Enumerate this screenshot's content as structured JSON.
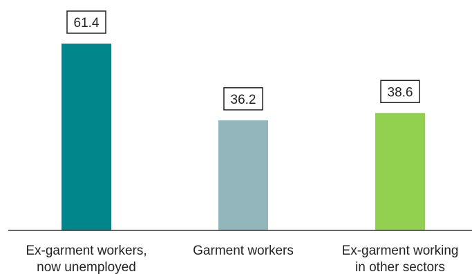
{
  "chart_data": {
    "type": "bar",
    "categories": [
      [
        "Ex-garment workers,",
        "now unemployed"
      ],
      [
        "Garment workers"
      ],
      [
        "Ex-garment working",
        "in other sectors"
      ]
    ],
    "values": [
      61.4,
      36.2,
      38.6
    ],
    "value_labels": [
      "61.4",
      "36.2",
      "38.6"
    ],
    "colors": [
      "#00868b",
      "#92b6bc",
      "#92d050"
    ],
    "title": "",
    "xlabel": "",
    "ylabel": "",
    "ylim": [
      0,
      61.4
    ],
    "grid": false,
    "legend": "none"
  }
}
